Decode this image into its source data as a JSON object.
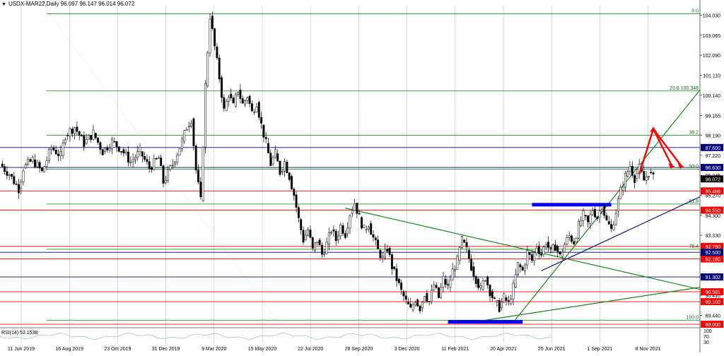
{
  "header": {
    "symbol_line": "USDX-MAR22,Daily  96.097 96.147 96.014 96.072"
  },
  "rsi_label": "RSI(14) 52.1538",
  "colors": {
    "candle": "#000000",
    "fibo": "#008000",
    "red_level": "#ff0000",
    "blue_level": "#000080",
    "arrow": "#ff0000",
    "grid": "#c0c0c0",
    "price_tag_current": "#000000",
    "blue_box": "#0000ff"
  },
  "chart_data": {
    "type": "candlestick",
    "x_ticks": [
      "11 Jun 2019",
      "16 Aug 2019",
      "23 Oct 2019",
      "31 Dec 2019",
      "9 Mar 2020",
      "15 May 2020",
      "22 Jul 2020",
      "28 Sep 2020",
      "3 Dec 2020",
      "11 Feb 2021",
      "20 Apr 2021",
      "25 Jun 2021",
      "1 Sep 2021",
      "8 Nov 2021"
    ],
    "y_ticks": [
      "104.030",
      "103.065",
      "102.090",
      "101.110",
      "100.140",
      "99.165",
      "98.190",
      "97.220",
      "96.245",
      "95.270",
      "94.300",
      "93.330",
      "92.360",
      "91.380",
      "90.410",
      "89.440"
    ],
    "ylim": [
      88.9,
      104.5
    ],
    "current_price": "96.072",
    "price_path": [
      [
        0,
        96.8
      ],
      [
        2,
        96.3
      ],
      [
        4,
        95.6
      ],
      [
        5,
        96.6
      ],
      [
        7,
        97.0
      ],
      [
        9,
        96.4
      ],
      [
        11,
        97.6
      ],
      [
        13,
        97.2
      ],
      [
        14,
        98.2
      ],
      [
        16,
        98.6
      ],
      [
        18,
        97.8
      ],
      [
        20,
        98.3
      ],
      [
        22,
        97.4
      ],
      [
        24,
        97.9
      ],
      [
        26,
        97.5
      ],
      [
        28,
        96.9
      ],
      [
        30,
        97.4
      ],
      [
        32,
        96.6
      ],
      [
        34,
        97.1
      ],
      [
        35,
        95.9
      ],
      [
        37,
        96.8
      ],
      [
        39,
        97.9
      ],
      [
        40,
        98.6
      ],
      [
        41,
        99.0
      ],
      [
        42,
        96.5
      ],
      [
        43,
        95.0
      ],
      [
        44,
        100.6
      ],
      [
        45,
        104.0
      ],
      [
        46,
        102.5
      ],
      [
        47,
        101.0
      ],
      [
        48,
        99.4
      ],
      [
        49,
        100.2
      ],
      [
        50,
        99.6
      ],
      [
        51,
        100.4
      ],
      [
        52,
        99.7
      ],
      [
        53,
        100.1
      ],
      [
        54,
        99.3
      ],
      [
        55,
        99.8
      ],
      [
        56,
        98.7
      ],
      [
        57,
        97.8
      ],
      [
        58,
        96.8
      ],
      [
        59,
        97.3
      ],
      [
        60,
        96.4
      ],
      [
        61,
        96.9
      ],
      [
        62,
        96.2
      ],
      [
        63,
        95.3
      ],
      [
        64,
        94.1
      ],
      [
        65,
        93.1
      ],
      [
        66,
        93.6
      ],
      [
        67,
        92.6
      ],
      [
        68,
        93.1
      ],
      [
        69,
        92.4
      ],
      [
        70,
        92.9
      ],
      [
        71,
        93.6
      ],
      [
        72,
        93.1
      ],
      [
        73,
        93.8
      ],
      [
        74,
        93.4
      ],
      [
        75,
        94.4
      ],
      [
        76,
        94.9
      ],
      [
        77,
        94.2
      ],
      [
        78,
        93.6
      ],
      [
        79,
        93.9
      ],
      [
        80,
        93.2
      ],
      [
        81,
        92.6
      ],
      [
        82,
        92.2
      ],
      [
        83,
        92.7
      ],
      [
        84,
        91.8
      ],
      [
        85,
        91.2
      ],
      [
        86,
        90.6
      ],
      [
        87,
        90.1
      ],
      [
        88,
        89.7
      ],
      [
        89,
        90.2
      ],
      [
        90,
        89.8
      ],
      [
        91,
        90.5
      ],
      [
        92,
        90.1
      ],
      [
        93,
        90.9
      ],
      [
        94,
        90.3
      ],
      [
        95,
        91.2
      ],
      [
        96,
        90.8
      ],
      [
        97,
        91.6
      ],
      [
        98,
        92.1
      ],
      [
        99,
        93.1
      ],
      [
        100,
        92.6
      ],
      [
        101,
        91.8
      ],
      [
        102,
        91.2
      ],
      [
        103,
        90.7
      ],
      [
        104,
        91.3
      ],
      [
        105,
        90.6
      ],
      [
        106,
        90.1
      ],
      [
        107,
        89.8
      ],
      [
        108,
        90.3
      ],
      [
        109,
        90.0
      ],
      [
        110,
        90.8
      ],
      [
        111,
        91.9
      ],
      [
        112,
        91.6
      ],
      [
        113,
        92.5
      ],
      [
        114,
        92.1
      ],
      [
        115,
        92.8
      ],
      [
        116,
        92.4
      ],
      [
        117,
        93.0
      ],
      [
        118,
        92.5
      ],
      [
        119,
        92.8
      ],
      [
        120,
        92.3
      ],
      [
        121,
        92.9
      ],
      [
        122,
        93.3
      ],
      [
        123,
        93.0
      ],
      [
        124,
        93.8
      ],
      [
        125,
        94.3
      ],
      [
        126,
        93.9
      ],
      [
        127,
        94.6
      ],
      [
        128,
        94.2
      ],
      [
        129,
        94.8
      ],
      [
        130,
        94.0
      ],
      [
        131,
        93.6
      ],
      [
        132,
        94.5
      ],
      [
        133,
        95.5
      ],
      [
        134,
        96.2
      ],
      [
        135,
        96.7
      ],
      [
        136,
        96.1
      ],
      [
        137,
        96.6
      ],
      [
        138,
        96.0
      ],
      [
        139,
        96.4
      ],
      [
        140,
        96.1
      ]
    ],
    "fibo_levels": [
      {
        "label": "0.0",
        "value": 104.1
      },
      {
        "label": "23.6 100.348",
        "value": 100.35
      },
      {
        "label": "38.2",
        "value": 98.2
      },
      {
        "label": "50.0",
        "value": 96.55
      },
      {
        "label": "61.8",
        "value": 94.85
      },
      {
        "label": "76.4",
        "value": 92.65
      },
      {
        "label": "100.0",
        "value": 89.2
      }
    ],
    "red_levels": [
      "95.486",
      "94.550",
      "92.790",
      "92.180",
      "90.581",
      "90.100",
      "89.000"
    ],
    "blue_levels": [
      "97.600",
      "96.630",
      "92.500",
      "91.302"
    ],
    "level_values": {
      "95.486": 95.486,
      "94.550": 94.55,
      "92.790": 92.79,
      "92.180": 92.18,
      "90.581": 90.581,
      "90.100": 90.1,
      "89.000": 89.0,
      "97.600": 97.6,
      "96.630": 96.63,
      "92.500": 92.5,
      "91.302": 91.302
    },
    "trendlines": [
      {
        "from": [
          110,
          89.1
        ],
        "to": [
          150,
          100.4
        ],
        "color": "green"
      },
      {
        "from": [
          104,
          89.2
        ],
        "to": [
          150,
          90.8
        ],
        "color": "green"
      },
      {
        "from": [
          74,
          94.65
        ],
        "to": [
          150,
          90.7
        ],
        "color": "green"
      },
      {
        "from": [
          116,
          91.6
        ],
        "to": [
          150,
          95.2
        ],
        "color": "blue"
      }
    ],
    "forecast_path": [
      [
        137,
        96.3
      ],
      [
        140,
        98.5
      ],
      [
        144,
        96.7
      ]
    ],
    "forecast_branch": [
      [
        140,
        98.5
      ],
      [
        146,
        96.7
      ]
    ],
    "blue_boxes": [
      {
        "x0": 114,
        "x1": 131,
        "y": 94.8
      },
      {
        "x0": 96,
        "x1": 112,
        "y": 89.1
      }
    ],
    "indicator_axis_labels": [
      "100",
      "70",
      "30"
    ]
  }
}
